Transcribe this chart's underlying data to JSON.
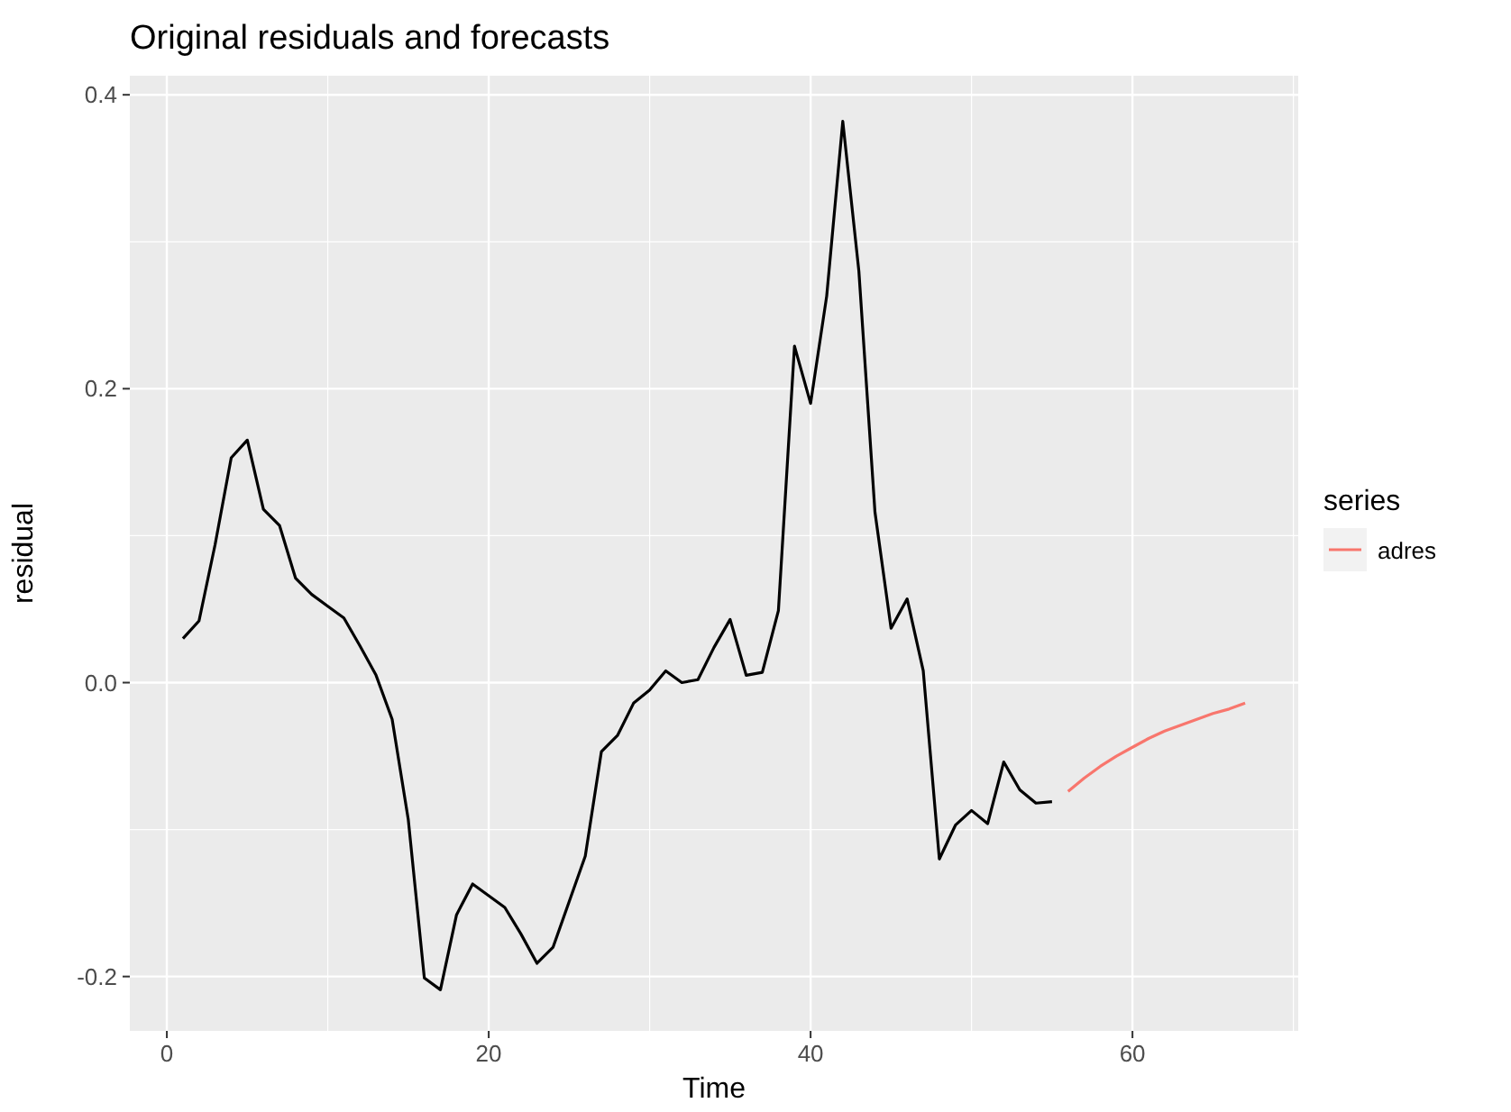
{
  "chart_data": {
    "type": "line",
    "title": "Original residuals and forecasts",
    "xlabel": "Time",
    "ylabel": "residual",
    "legend_title": "series",
    "legend": "right",
    "grid": true,
    "line_style": "solid",
    "marker": "none",
    "xlim": [
      -2.3,
      70.3
    ],
    "xticks": [
      0,
      20,
      40,
      60
    ],
    "ylim": [
      -0.237,
      0.413
    ],
    "yticks": [
      {
        "value": -0.2,
        "label": "-0.2"
      },
      {
        "value": 0,
        "label": "0.0"
      },
      {
        "value": 0.2,
        "label": "0.2"
      },
      {
        "value": 0.4,
        "label": "0.4"
      }
    ],
    "series": [
      {
        "color": "#000000",
        "x": [
          1,
          2,
          3,
          4,
          5,
          6,
          7,
          8,
          9,
          10,
          11,
          12,
          13,
          14,
          15,
          16,
          17,
          18,
          19,
          20,
          21,
          22,
          23,
          24,
          25,
          26,
          27,
          28,
          29,
          30,
          31,
          32,
          33,
          34,
          35,
          36,
          37,
          38,
          39,
          40,
          41,
          42,
          43,
          44,
          45,
          46,
          47,
          48,
          49,
          50,
          51,
          52,
          53,
          54,
          55
        ],
        "values": [
          0.03,
          0.042,
          0.094,
          0.153,
          0.165,
          0.118,
          0.107,
          0.071,
          0.06,
          0.052,
          0.044,
          0.025,
          0.005,
          -0.025,
          -0.093,
          -0.201,
          -0.209,
          -0.158,
          -0.137,
          -0.145,
          -0.153,
          -0.171,
          -0.191,
          -0.18,
          -0.149,
          -0.118,
          -0.047,
          -0.036,
          -0.014,
          -0.005,
          0.008,
          0.0,
          0.002,
          0.024,
          0.043,
          0.005,
          0.007,
          0.049,
          0.229,
          0.19,
          0.263,
          0.382,
          0.28,
          0.116,
          0.037,
          0.057,
          0.008,
          -0.12,
          -0.097,
          -0.087,
          -0.096,
          -0.054,
          -0.073,
          -0.082,
          -0.081
        ]
      },
      {
        "name": "adres",
        "color": "#f8766d",
        "x": [
          56,
          57,
          58,
          59,
          60,
          61,
          62,
          63,
          64,
          65,
          66,
          67
        ],
        "values": [
          -0.074,
          -0.065,
          -0.057,
          -0.05,
          -0.044,
          -0.038,
          -0.033,
          -0.029,
          -0.025,
          -0.021,
          -0.018,
          -0.014
        ]
      }
    ]
  }
}
